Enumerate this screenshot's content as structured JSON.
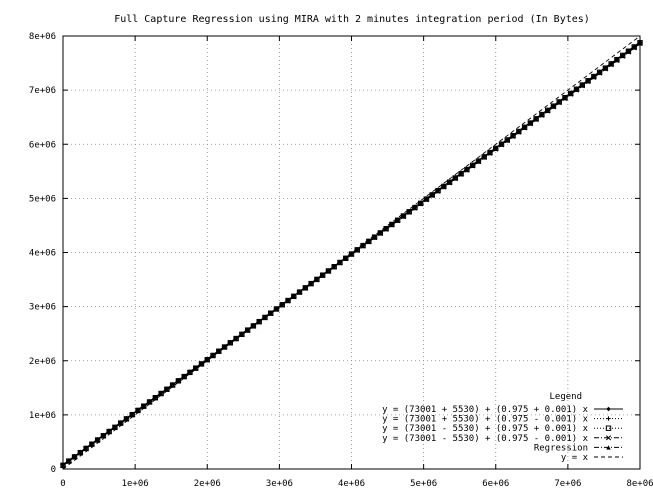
{
  "chart_data": {
    "type": "line",
    "title": "Full Capture Regression using MIRA with 2 minutes integration period (In Bytes)",
    "xlim": [
      0,
      8000000
    ],
    "ylim": [
      0,
      8000000
    ],
    "x_ticks": [
      0,
      1000000,
      2000000,
      3000000,
      4000000,
      5000000,
      6000000,
      7000000,
      8000000
    ],
    "x_tick_labels": [
      "0",
      "1e+06",
      "2e+06",
      "3e+06",
      "4e+06",
      "5e+06",
      "6e+06",
      "7e+06",
      "8e+06"
    ],
    "y_ticks": [
      0,
      1000000,
      2000000,
      3000000,
      4000000,
      5000000,
      6000000,
      7000000,
      8000000
    ],
    "y_tick_labels": [
      "0",
      "1e+06",
      "2e+06",
      "3e+06",
      "4e+06",
      "5e+06",
      "6e+06",
      "7e+06",
      "8e+06"
    ],
    "grid": true,
    "legend_title": "Legend",
    "legend_position": "bottom-right",
    "series": [
      {
        "name": "y = (73001 + 5530) + (0.975 + 0.001) x",
        "intercept": 78531,
        "slope": 0.976,
        "style": "solid",
        "marker": "diamond"
      },
      {
        "name": "y = (73001 + 5530) + (0.975 - 0.001) x",
        "intercept": 78531,
        "slope": 0.974,
        "style": "dotted",
        "marker": "plus"
      },
      {
        "name": "y = (73001 - 5530) + (0.975 + 0.001) x",
        "intercept": 67471,
        "slope": 0.976,
        "style": "dotted",
        "marker": "square"
      },
      {
        "name": "y = (73001 - 5530) + (0.975 - 0.001) x",
        "intercept": 67471,
        "slope": 0.974,
        "style": "dashdot",
        "marker": "cross"
      },
      {
        "name": "Regression",
        "intercept": 73001,
        "slope": 0.975,
        "style": "dashdot",
        "marker": "triangle"
      },
      {
        "name": "y = x",
        "intercept": 0,
        "slope": 1.0,
        "style": "dashed",
        "marker": "none"
      }
    ]
  }
}
